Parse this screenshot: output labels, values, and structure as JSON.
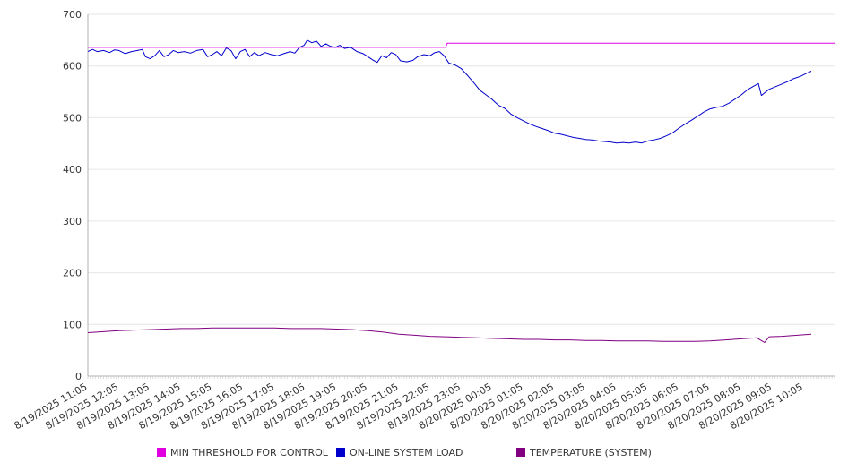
{
  "chart_data": {
    "type": "line",
    "title": "",
    "xlabel": "",
    "ylabel": "",
    "ylim": [
      0,
      700
    ],
    "yticks": [
      "0",
      "100",
      "200",
      "300",
      "400",
      "500",
      "600",
      "700"
    ],
    "grid": "horizontal",
    "legend_position": "bottom",
    "x_tick_labels": [
      "8/19/2025 11:05",
      "8/19/2025 12:05",
      "8/19/2025 13:05",
      "8/19/2025 14:05",
      "8/19/2025 15:05",
      "8/19/2025 16:05",
      "8/19/2025 17:05",
      "8/19/2025 18:05",
      "8/19/2025 19:05",
      "8/19/2025 20:05",
      "8/19/2025 21:05",
      "8/19/2025 22:05",
      "8/19/2025 23:05",
      "8/20/2025 00:05",
      "8/20/2025 01:05",
      "8/20/2025 02:05",
      "8/20/2025 03:05",
      "8/20/2025 04:05",
      "8/20/2025 05:05",
      "8/20/2025 06:05",
      "8/20/2025 07:05",
      "8/20/2025 08:05",
      "8/20/2025 09:05",
      "8/20/2025 10:05"
    ],
    "series": [
      {
        "name": "MIN THRESHOLD FOR CONTROL",
        "color": "#e000e0",
        "points": [
          [
            0,
            636
          ],
          [
            11.5,
            636
          ],
          [
            11.55,
            644
          ],
          [
            24,
            644
          ]
        ]
      },
      {
        "name": "ON-LINE SYSTEM LOAD",
        "color": "#0000cc",
        "points": [
          [
            0,
            628
          ],
          [
            0.15,
            632
          ],
          [
            0.3,
            628
          ],
          [
            0.5,
            630
          ],
          [
            0.7,
            626
          ],
          [
            0.85,
            631
          ],
          [
            1,
            630
          ],
          [
            1.2,
            624
          ],
          [
            1.4,
            628
          ],
          [
            1.6,
            630
          ],
          [
            1.75,
            632
          ],
          [
            1.85,
            618
          ],
          [
            2,
            614
          ],
          [
            2.15,
            620
          ],
          [
            2.3,
            630
          ],
          [
            2.45,
            618
          ],
          [
            2.6,
            622
          ],
          [
            2.75,
            630
          ],
          [
            2.9,
            626
          ],
          [
            3.1,
            628
          ],
          [
            3.3,
            625
          ],
          [
            3.5,
            630
          ],
          [
            3.7,
            632
          ],
          [
            3.85,
            618
          ],
          [
            4,
            622
          ],
          [
            4.15,
            628
          ],
          [
            4.3,
            620
          ],
          [
            4.45,
            635
          ],
          [
            4.6,
            630
          ],
          [
            4.75,
            614
          ],
          [
            4.9,
            628
          ],
          [
            5.05,
            632
          ],
          [
            5.2,
            618
          ],
          [
            5.35,
            626
          ],
          [
            5.5,
            620
          ],
          [
            5.7,
            626
          ],
          [
            5.9,
            622
          ],
          [
            6.1,
            620
          ],
          [
            6.3,
            624
          ],
          [
            6.5,
            628
          ],
          [
            6.65,
            625
          ],
          [
            6.8,
            636
          ],
          [
            6.95,
            640
          ],
          [
            7.05,
            650
          ],
          [
            7.2,
            645
          ],
          [
            7.35,
            648
          ],
          [
            7.5,
            638
          ],
          [
            7.65,
            643
          ],
          [
            7.8,
            638
          ],
          [
            7.95,
            636
          ],
          [
            8.1,
            640
          ],
          [
            8.25,
            634
          ],
          [
            8.45,
            636
          ],
          [
            8.65,
            628
          ],
          [
            8.85,
            624
          ],
          [
            9.0,
            618
          ],
          [
            9.15,
            612
          ],
          [
            9.3,
            607
          ],
          [
            9.45,
            620
          ],
          [
            9.6,
            616
          ],
          [
            9.75,
            626
          ],
          [
            9.9,
            622
          ],
          [
            10.05,
            610
          ],
          [
            10.25,
            608
          ],
          [
            10.45,
            611
          ],
          [
            10.6,
            618
          ],
          [
            10.8,
            622
          ],
          [
            11.0,
            620
          ],
          [
            11.15,
            626
          ],
          [
            11.3,
            628
          ],
          [
            11.45,
            620
          ],
          [
            11.6,
            606
          ],
          [
            11.8,
            602
          ],
          [
            12.0,
            595
          ],
          [
            12.2,
            582
          ],
          [
            12.4,
            568
          ],
          [
            12.6,
            553
          ],
          [
            12.8,
            544
          ],
          [
            13.0,
            535
          ],
          [
            13.2,
            524
          ],
          [
            13.4,
            518
          ],
          [
            13.6,
            507
          ],
          [
            13.8,
            500
          ],
          [
            14.0,
            494
          ],
          [
            14.2,
            488
          ],
          [
            14.4,
            483
          ],
          [
            14.6,
            479
          ],
          [
            14.8,
            475
          ],
          [
            15.0,
            470
          ],
          [
            15.2,
            468
          ],
          [
            15.4,
            465
          ],
          [
            15.6,
            462
          ],
          [
            15.8,
            460
          ],
          [
            16.0,
            458
          ],
          [
            16.2,
            457
          ],
          [
            16.4,
            455
          ],
          [
            16.6,
            454
          ],
          [
            16.8,
            453
          ],
          [
            17.0,
            451
          ],
          [
            17.2,
            452
          ],
          [
            17.4,
            451
          ],
          [
            17.6,
            453
          ],
          [
            17.8,
            451
          ],
          [
            18.0,
            455
          ],
          [
            18.2,
            457
          ],
          [
            18.4,
            460
          ],
          [
            18.6,
            465
          ],
          [
            18.8,
            471
          ],
          [
            19.0,
            480
          ],
          [
            19.2,
            488
          ],
          [
            19.4,
            495
          ],
          [
            19.6,
            503
          ],
          [
            19.8,
            511
          ],
          [
            20.0,
            517
          ],
          [
            20.2,
            520
          ],
          [
            20.4,
            522
          ],
          [
            20.6,
            528
          ],
          [
            20.8,
            536
          ],
          [
            21.0,
            544
          ],
          [
            21.2,
            554
          ],
          [
            21.4,
            561
          ],
          [
            21.55,
            566
          ],
          [
            21.65,
            543
          ],
          [
            21.75,
            548
          ],
          [
            21.9,
            555
          ],
          [
            22.1,
            560
          ],
          [
            22.3,
            565
          ],
          [
            22.5,
            570
          ],
          [
            22.7,
            576
          ],
          [
            22.9,
            580
          ],
          [
            23.1,
            586
          ],
          [
            23.25,
            590
          ]
        ]
      },
      {
        "name": "TEMPERATURE (SYSTEM)",
        "color": "#800080",
        "points": [
          [
            0,
            84
          ],
          [
            0.5,
            86
          ],
          [
            1,
            88
          ],
          [
            1.5,
            89
          ],
          [
            2,
            90
          ],
          [
            2.5,
            91
          ],
          [
            3,
            92
          ],
          [
            3.5,
            92
          ],
          [
            4,
            93
          ],
          [
            4.5,
            93
          ],
          [
            5,
            93
          ],
          [
            5.5,
            93
          ],
          [
            6,
            93
          ],
          [
            6.5,
            92
          ],
          [
            7,
            92
          ],
          [
            7.5,
            92
          ],
          [
            8,
            91
          ],
          [
            8.5,
            90
          ],
          [
            9,
            88
          ],
          [
            9.5,
            85
          ],
          [
            10,
            81
          ],
          [
            10.5,
            79
          ],
          [
            11,
            77
          ],
          [
            11.5,
            76
          ],
          [
            12,
            75
          ],
          [
            12.5,
            74
          ],
          [
            13,
            73
          ],
          [
            13.5,
            72
          ],
          [
            14,
            71
          ],
          [
            14.5,
            71
          ],
          [
            15,
            70
          ],
          [
            15.5,
            70
          ],
          [
            16,
            69
          ],
          [
            16.5,
            69
          ],
          [
            17,
            68
          ],
          [
            17.5,
            68
          ],
          [
            18,
            68
          ],
          [
            18.5,
            67
          ],
          [
            19,
            67
          ],
          [
            19.5,
            67
          ],
          [
            20,
            68
          ],
          [
            20.5,
            70
          ],
          [
            21,
            72
          ],
          [
            21.5,
            74
          ],
          [
            21.75,
            65
          ],
          [
            21.9,
            76
          ],
          [
            22.3,
            77
          ],
          [
            22.8,
            79
          ],
          [
            23.25,
            81
          ]
        ]
      }
    ]
  }
}
